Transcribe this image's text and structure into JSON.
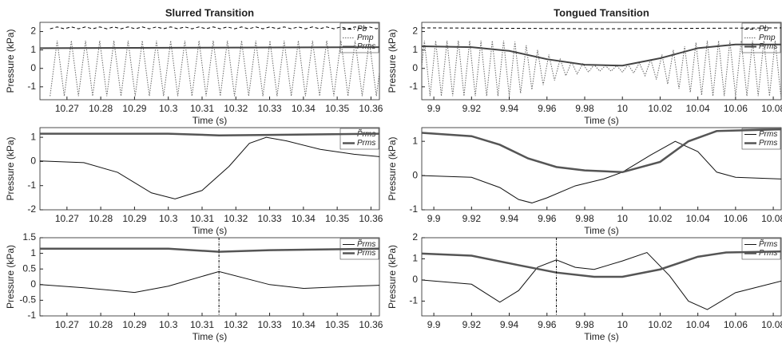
{
  "chart_data": [
    {
      "type": "line",
      "title": "Slurred Transition",
      "xlabel": "Time (s)",
      "ylabel": "Pressure (kPa)",
      "xlim": [
        10.262,
        10.3625
      ],
      "xticks": [
        10.27,
        10.28,
        10.29,
        10.3,
        10.31,
        10.32,
        10.33,
        10.34,
        10.35,
        10.36
      ],
      "ylim": [
        -1.7,
        2.5
      ],
      "yticks": [
        -1,
        0,
        1,
        2
      ],
      "series": [
        {
          "name": "Pb",
          "color": "#000000",
          "style": "dashed",
          "width": 1,
          "x": [
            10.265,
            10.2671,
            10.2692,
            10.2713,
            10.2734,
            10.2755,
            10.2776,
            10.2797,
            10.2818,
            10.2839,
            10.286,
            10.2881,
            10.2902,
            10.2923,
            10.2944,
            10.2965,
            10.2986,
            10.3007,
            10.3028,
            10.3049,
            10.307,
            10.3091,
            10.3112,
            10.3133,
            10.3154,
            10.3175,
            10.3196,
            10.3217,
            10.3238,
            10.3259,
            10.328,
            10.3301,
            10.3322,
            10.3343,
            10.3364,
            10.3385,
            10.3406,
            10.3427,
            10.3448,
            10.3469,
            10.349,
            10.3511,
            10.3532,
            10.3553,
            10.3574,
            10.3595,
            10.3616,
            10.3637
          ],
          "values": [
            2.15,
            2.25,
            2.15,
            2.25,
            2.15,
            2.25,
            2.15,
            2.25,
            2.15,
            2.25,
            2.15,
            2.25,
            2.15,
            2.25,
            2.15,
            2.25,
            2.15,
            2.25,
            2.15,
            2.25,
            2.15,
            2.25,
            2.15,
            2.25,
            2.15,
            2.25,
            2.15,
            2.25,
            2.15,
            2.25,
            2.15,
            2.25,
            2.15,
            2.25,
            2.15,
            2.25,
            2.15,
            2.25,
            2.15,
            2.25,
            2.15,
            2.25,
            2.15,
            2.25,
            2.15,
            2.25,
            2.15,
            2.25
          ]
        },
        {
          "name": "Pmp",
          "color": "#666666",
          "style": "dotted",
          "width": 1,
          "x": [
            10.265,
            10.2671,
            10.2692,
            10.2713,
            10.2734,
            10.2755,
            10.2776,
            10.2797,
            10.2818,
            10.2839,
            10.286,
            10.2881,
            10.2902,
            10.2923,
            10.2944,
            10.2965,
            10.2986,
            10.3007,
            10.3028,
            10.3049,
            10.307,
            10.3091,
            10.3112,
            10.3133,
            10.3154,
            10.3175,
            10.3196,
            10.3217,
            10.3238,
            10.3259,
            10.328,
            10.3301,
            10.3322,
            10.3343,
            10.3364,
            10.3385,
            10.3406,
            10.3427,
            10.3448,
            10.3469,
            10.349,
            10.3511,
            10.3532,
            10.3553,
            10.3574,
            10.3595,
            10.3616,
            10.3637
          ],
          "values": [
            -1.5,
            1.5,
            -1.5,
            1.5,
            -1.5,
            1.5,
            -1.5,
            1.5,
            -1.5,
            1.5,
            -1.5,
            1.5,
            -1.5,
            1.5,
            -1.5,
            1.5,
            -1.5,
            1.5,
            -1.5,
            1.5,
            -1.5,
            1.5,
            -1.5,
            1.5,
            -1.5,
            1.5,
            -1.5,
            1.5,
            -1.5,
            1.5,
            -1.5,
            1.5,
            -1.5,
            1.5,
            -1.5,
            1.5,
            -1.5,
            1.5,
            -1.5,
            1.5,
            -1.5,
            1.5,
            -1.5,
            1.5,
            -1.5,
            1.5,
            -1.5,
            1.5
          ]
        },
        {
          "name": "Prms",
          "color": "#444444",
          "style": "solid",
          "width": 2,
          "x": [
            10.262,
            10.3,
            10.3625
          ],
          "values": [
            1.1,
            1.12,
            1.15
          ]
        }
      ]
    },
    {
      "type": "line",
      "title": "Tongued Transition",
      "xlabel": "Time (s)",
      "ylabel": "Pressure (kPa)",
      "xlim": [
        9.8936,
        10.0842
      ],
      "xticks": [
        9.9,
        9.92,
        9.94,
        9.96,
        9.98,
        10,
        10.02,
        10.04,
        10.06,
        10.08
      ],
      "ylim": [
        -1.7,
        2.5
      ],
      "yticks": [
        -1,
        0,
        1,
        2
      ],
      "series": [
        {
          "name": "Pb",
          "color": "#000000",
          "style": "dashed",
          "width": 1,
          "x": [
            9.8936,
            9.99,
            10.0842
          ],
          "values": [
            2.2,
            2.15,
            2.2
          ]
        },
        {
          "name": "Pmp",
          "color": "#666666",
          "style": "dotted",
          "width": 1,
          "x": [
            9.892,
            9.895,
            9.898,
            9.901,
            9.904,
            9.907,
            9.91,
            9.913,
            9.916,
            9.919,
            9.922,
            9.925,
            9.928,
            9.931,
            9.934,
            9.937,
            9.94,
            9.943,
            9.946,
            9.949,
            9.952,
            9.955,
            9.958,
            9.961,
            9.964,
            9.967,
            9.97,
            9.973,
            9.976,
            9.979,
            9.982,
            9.985,
            9.988,
            9.991,
            9.994,
            9.997,
            10.0,
            10.003,
            10.006,
            10.009,
            10.012,
            10.015,
            10.018,
            10.021,
            10.024,
            10.027,
            10.03,
            10.033,
            10.036,
            10.039,
            10.042,
            10.045,
            10.048,
            10.051,
            10.054,
            10.057,
            10.06,
            10.063,
            10.066,
            10.069,
            10.072,
            10.075,
            10.078,
            10.081,
            10.084
          ],
          "values": [
            -1.5,
            1.5,
            -1.5,
            1.5,
            -1.5,
            1.5,
            -1.5,
            1.5,
            -1.5,
            1.5,
            -1.5,
            1.5,
            -1.5,
            1.5,
            -1.5,
            1.5,
            -1.5,
            1.45,
            -1.35,
            1.25,
            -1.15,
            1.0,
            -0.9,
            0.75,
            -0.65,
            0.5,
            -0.4,
            0.35,
            -0.3,
            0.25,
            -0.2,
            0.2,
            -0.15,
            0.15,
            -0.15,
            0.15,
            -0.2,
            0.2,
            -0.25,
            0.3,
            -0.4,
            0.5,
            -0.6,
            0.75,
            -0.85,
            1.0,
            -1.1,
            1.2,
            -1.3,
            1.4,
            -1.45,
            1.5,
            -1.5,
            1.5,
            -1.5,
            1.5,
            -1.5,
            1.5,
            -1.5,
            1.5,
            -1.5,
            1.5,
            -1.5,
            1.5,
            -1.5
          ]
        },
        {
          "name": "Prms",
          "color": "#444444",
          "style": "solid",
          "width": 2,
          "x": [
            9.8936,
            9.92,
            9.94,
            9.96,
            9.98,
            10.0,
            10.02,
            10.04,
            10.06,
            10.0842
          ],
          "values": [
            1.2,
            1.15,
            0.95,
            0.5,
            0.2,
            0.15,
            0.55,
            1.1,
            1.3,
            1.3
          ]
        }
      ]
    },
    {
      "type": "line",
      "xlabel": "Time (s)",
      "ylabel": "Pressure (kPa)",
      "xlim": [
        10.262,
        10.3625
      ],
      "xticks": [
        10.27,
        10.28,
        10.29,
        10.3,
        10.31,
        10.32,
        10.33,
        10.34,
        10.35,
        10.36
      ],
      "ylim": [
        -2,
        1.4
      ],
      "yticks": [
        -2,
        -1,
        0,
        1
      ],
      "series": [
        {
          "name": "P̃rms",
          "color": "#111111",
          "style": "solid",
          "width": 1,
          "x": [
            10.262,
            10.275,
            10.285,
            10.295,
            10.302,
            10.31,
            10.318,
            10.324,
            10.329,
            10.335,
            10.345,
            10.355,
            10.3625
          ],
          "values": [
            0.02,
            -0.05,
            -0.45,
            -1.3,
            -1.55,
            -1.2,
            -0.2,
            0.75,
            1.0,
            0.85,
            0.5,
            0.3,
            0.2
          ]
        },
        {
          "name": "Prms",
          "color": "#555555",
          "style": "solid",
          "width": 2.5,
          "x": [
            10.262,
            10.3,
            10.315,
            10.33,
            10.3625
          ],
          "values": [
            1.15,
            1.15,
            1.08,
            1.1,
            1.15
          ]
        }
      ]
    },
    {
      "type": "line",
      "xlabel": "Time (s)",
      "ylabel": "Pressure (kPa)",
      "xlim": [
        9.8936,
        10.0842
      ],
      "xticks": [
        9.9,
        9.92,
        9.94,
        9.96,
        9.98,
        10,
        10.02,
        10.04,
        10.06,
        10.08
      ],
      "ylim": [
        -1,
        1.4
      ],
      "yticks": [
        -1,
        0,
        1
      ],
      "series": [
        {
          "name": "P̃rms",
          "color": "#111111",
          "style": "solid",
          "width": 1,
          "x": [
            9.8936,
            9.92,
            9.935,
            9.945,
            9.952,
            9.96,
            9.975,
            9.99,
            10.0,
            10.015,
            10.028,
            10.04,
            10.05,
            10.06,
            10.0842
          ],
          "values": [
            0.0,
            -0.05,
            -0.35,
            -0.7,
            -0.8,
            -0.65,
            -0.3,
            -0.1,
            0.1,
            0.6,
            1.0,
            0.7,
            0.1,
            -0.05,
            -0.1
          ]
        },
        {
          "name": "Prms",
          "color": "#555555",
          "style": "solid",
          "width": 2.5,
          "x": [
            9.8936,
            9.92,
            9.935,
            9.95,
            9.965,
            9.98,
            10.0,
            10.02,
            10.035,
            10.05,
            10.0842
          ],
          "values": [
            1.25,
            1.15,
            0.9,
            0.5,
            0.25,
            0.15,
            0.1,
            0.4,
            1.0,
            1.3,
            1.35
          ]
        }
      ]
    },
    {
      "type": "line",
      "xlabel": "Time (s)",
      "ylabel": "Pressure (kPa)",
      "vline": 10.315,
      "xlim": [
        10.262,
        10.3625
      ],
      "xticks": [
        10.27,
        10.28,
        10.29,
        10.3,
        10.31,
        10.32,
        10.33,
        10.34,
        10.35,
        10.36
      ],
      "ylim": [
        -1,
        1.5
      ],
      "yticks": [
        -1,
        -0.5,
        0,
        0.5,
        1,
        1.5
      ],
      "series": [
        {
          "name": "P̃rms",
          "color": "#111111",
          "style": "solid",
          "width": 1,
          "x": [
            10.262,
            10.275,
            10.29,
            10.3,
            10.315,
            10.33,
            10.34,
            10.355,
            10.3625
          ],
          "values": [
            0.0,
            -0.1,
            -0.25,
            -0.05,
            0.42,
            0.0,
            -0.12,
            -0.05,
            -0.02
          ]
        },
        {
          "name": "Prms",
          "color": "#555555",
          "style": "solid",
          "width": 2.5,
          "x": [
            10.262,
            10.3,
            10.315,
            10.33,
            10.3625
          ],
          "values": [
            1.15,
            1.15,
            1.05,
            1.1,
            1.15
          ]
        }
      ]
    },
    {
      "type": "line",
      "xlabel": "Time (s)",
      "ylabel": "Pressure (kPa)",
      "vline": 9.965,
      "xlim": [
        9.8936,
        10.0842
      ],
      "xticks": [
        9.9,
        9.92,
        9.94,
        9.96,
        9.98,
        10,
        10.02,
        10.04,
        10.06,
        10.08
      ],
      "ylim": [
        -1.7,
        2
      ],
      "yticks": [
        -1,
        0,
        1,
        2
      ],
      "series": [
        {
          "name": "P̃rms",
          "color": "#111111",
          "style": "solid",
          "width": 1,
          "x": [
            9.8936,
            9.92,
            9.935,
            9.945,
            9.955,
            9.965,
            9.975,
            9.985,
            10.0,
            10.013,
            10.025,
            10.035,
            10.045,
            10.06,
            10.0842
          ],
          "values": [
            0.0,
            -0.2,
            -1.05,
            -0.5,
            0.6,
            0.95,
            0.6,
            0.5,
            0.9,
            1.3,
            0.2,
            -1.0,
            -1.4,
            -0.6,
            -0.05
          ]
        },
        {
          "name": "Prms",
          "color": "#555555",
          "style": "solid",
          "width": 2.5,
          "x": [
            9.8936,
            9.92,
            9.945,
            9.965,
            9.985,
            10.0,
            10.02,
            10.04,
            10.055,
            10.0842
          ],
          "values": [
            1.25,
            1.15,
            0.7,
            0.35,
            0.15,
            0.15,
            0.5,
            1.1,
            1.3,
            1.35
          ]
        }
      ]
    }
  ]
}
